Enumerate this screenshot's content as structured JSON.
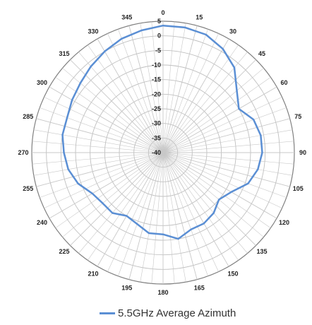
{
  "chart_data": {
    "type": "line",
    "polar": true,
    "angle_ticks": [
      "0",
      "15",
      "30",
      "45",
      "60",
      "75",
      "90",
      "105",
      "120",
      "135",
      "150",
      "165",
      "180",
      "195",
      "210",
      "225",
      "240",
      "255",
      "270",
      "285",
      "300",
      "315",
      "330",
      "345"
    ],
    "radial_ticks": [
      5,
      0,
      -5,
      -10,
      -15,
      -20,
      -25,
      -30,
      -35,
      -40
    ],
    "rlim": [
      -40,
      5
    ],
    "grid": true,
    "legend": "bottom",
    "series": [
      {
        "name": "5.5GHz Average Azimuth",
        "color": "#5b8fd4",
        "angles": [
          0,
          10,
          20,
          30,
          40,
          50,
          60,
          70,
          80,
          90,
          100,
          110,
          120,
          130,
          140,
          150,
          160,
          170,
          180,
          190,
          200,
          210,
          220,
          230,
          240,
          250,
          260,
          270,
          280,
          290,
          300,
          310,
          320,
          330,
          340,
          350
        ],
        "values": [
          3.5,
          3.5,
          3,
          1,
          -2,
          -7,
          -10,
          -7,
          -6,
          -6,
          -7,
          -9,
          -13,
          -15,
          -13,
          -12,
          -12,
          -10,
          -12,
          -12,
          -14,
          -15,
          -13,
          -13,
          -12,
          -9,
          -7,
          -6,
          -5,
          -5,
          -4,
          -3,
          -1.5,
          0,
          1.5,
          2.5
        ]
      }
    ]
  }
}
